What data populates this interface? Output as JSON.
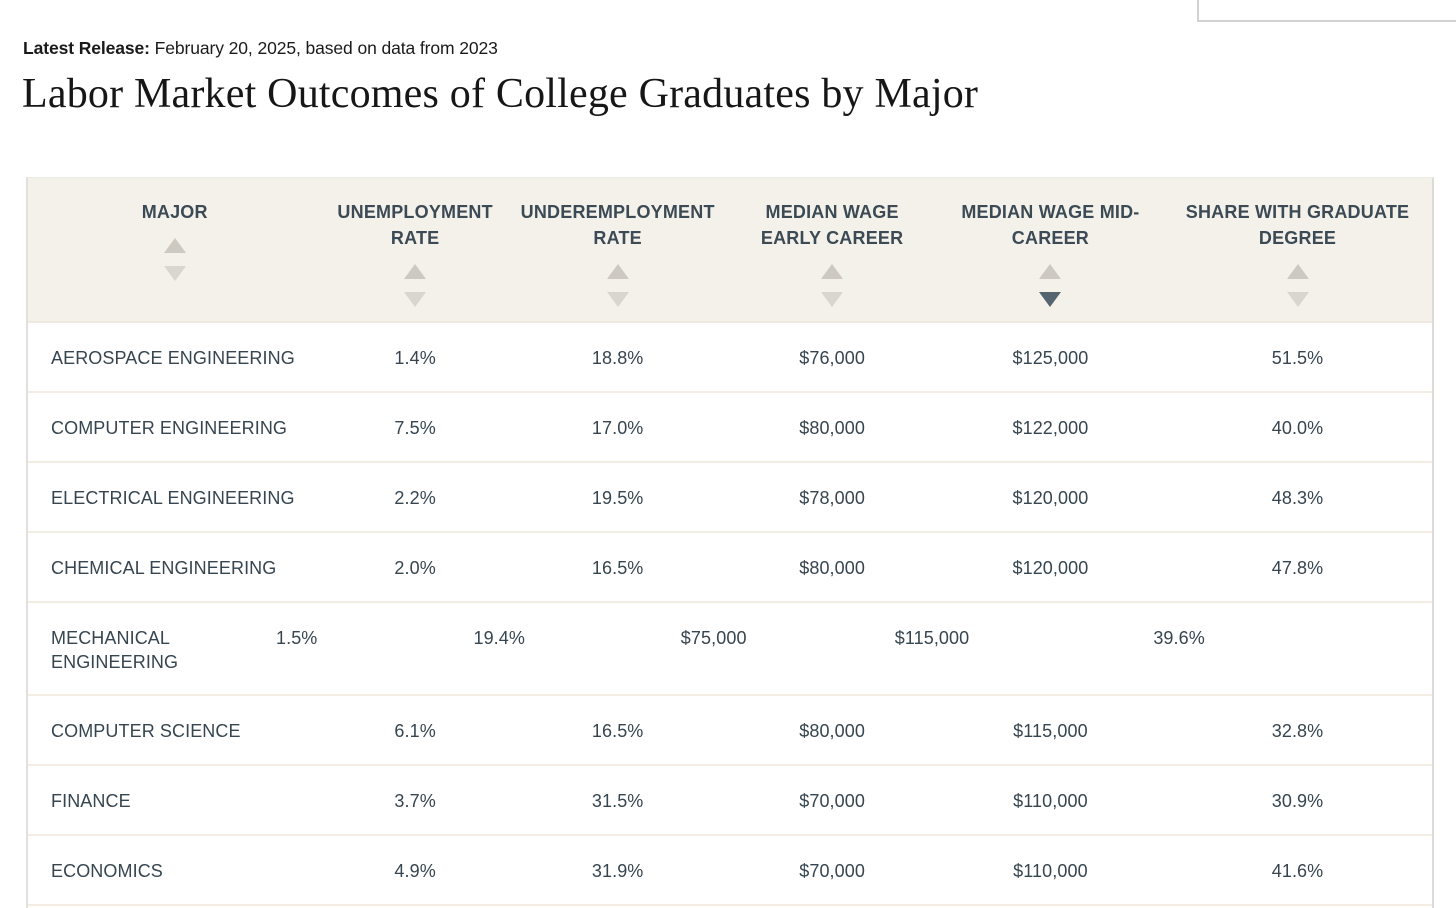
{
  "page": {
    "release_label": "Latest Release:",
    "release_text": " February 20, 2025, based on data from 2023",
    "title": "Labor Market Outcomes of College Graduates by Major"
  },
  "table": {
    "columns": [
      {
        "label": "MAJOR",
        "sort_indicator": "none"
      },
      {
        "label": "UNEMPLOYMENT RATE",
        "sort_indicator": "none"
      },
      {
        "label": "UNDEREMPLOYMENT RATE",
        "sort_indicator": "none"
      },
      {
        "label": "MEDIAN WAGE EARLY CAREER",
        "sort_indicator": "none"
      },
      {
        "label": "MEDIAN WAGE MID-CAREER",
        "sort_indicator": "descending"
      },
      {
        "label": "SHARE WITH GRADUATE DEGREE",
        "sort_indicator": "none"
      }
    ],
    "rows": [
      {
        "major": "AEROSPACE ENGINEERING",
        "unemployment_rate": "1.4%",
        "underemployment_rate": "18.8%",
        "median_wage_early_career": "$76,000",
        "median_wage_mid_career": "$125,000",
        "share_with_graduate_degree": "51.5%"
      },
      {
        "major": "COMPUTER ENGINEERING",
        "unemployment_rate": "7.5%",
        "underemployment_rate": "17.0%",
        "median_wage_early_career": "$80,000",
        "median_wage_mid_career": "$122,000",
        "share_with_graduate_degree": "40.0%"
      },
      {
        "major": "ELECTRICAL ENGINEERING",
        "unemployment_rate": "2.2%",
        "underemployment_rate": "19.5%",
        "median_wage_early_career": "$78,000",
        "median_wage_mid_career": "$120,000",
        "share_with_graduate_degree": "48.3%"
      },
      {
        "major": "CHEMICAL ENGINEERING",
        "unemployment_rate": "2.0%",
        "underemployment_rate": "16.5%",
        "median_wage_early_career": "$80,000",
        "median_wage_mid_career": "$120,000",
        "share_with_graduate_degree": "47.8%"
      },
      {
        "major": "MECHANICAL ENGINEERING",
        "unemployment_rate": "1.5%",
        "underemployment_rate": "19.4%",
        "median_wage_early_career": "$75,000",
        "median_wage_mid_career": "$115,000",
        "share_with_graduate_degree": "39.6%"
      },
      {
        "major": "COMPUTER SCIENCE",
        "unemployment_rate": "6.1%",
        "underemployment_rate": "16.5%",
        "median_wage_early_career": "$80,000",
        "median_wage_mid_career": "$115,000",
        "share_with_graduate_degree": "32.8%"
      },
      {
        "major": "FINANCE",
        "unemployment_rate": "3.7%",
        "underemployment_rate": "31.5%",
        "median_wage_early_career": "$70,000",
        "median_wage_mid_career": "$110,000",
        "share_with_graduate_degree": "30.9%"
      },
      {
        "major": "ECONOMICS",
        "unemployment_rate": "4.9%",
        "underemployment_rate": "31.9%",
        "median_wage_early_career": "$70,000",
        "median_wage_mid_career": "$110,000",
        "share_with_graduate_degree": "41.6%"
      }
    ]
  },
  "colors": {
    "header_background": "#f4f1ea",
    "table_text": "#36454f",
    "header_text": "#3b4a54",
    "sort_arrow_inactive": "#d3cfc7",
    "sort_arrow_active": "#55656f",
    "row_separator": "#f3ede4"
  }
}
